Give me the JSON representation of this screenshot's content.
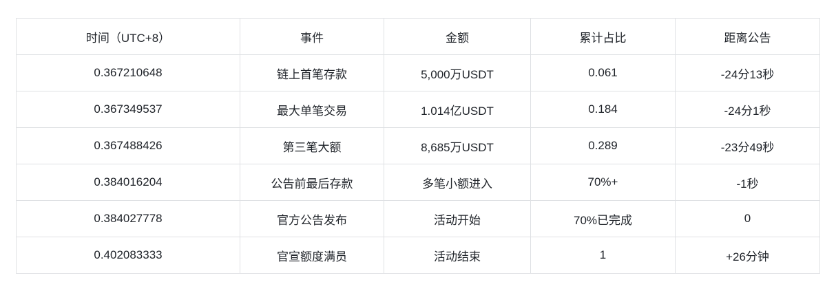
{
  "table": {
    "columns": [
      "时间（UTC+8）",
      "事件",
      "金额",
      "累计占比",
      "距离公告"
    ],
    "rows": [
      [
        "0.367210648",
        "链上首笔存款",
        "5,000万USDT",
        "0.061",
        "-24分13秒"
      ],
      [
        "0.367349537",
        "最大单笔交易",
        "1.014亿USDT",
        "0.184",
        "-24分1秒"
      ],
      [
        "0.367488426",
        "第三笔大额",
        "8,685万USDT",
        "0.289",
        "-23分49秒"
      ],
      [
        "0.384016204",
        "公告前最后存款",
        "多笔小额进入",
        "70%+",
        "-1秒"
      ],
      [
        "0.384027778",
        "官方公告发布",
        "活动开始",
        "70%已完成",
        "0"
      ],
      [
        "0.402083333",
        "官宣额度满员",
        "活动结束",
        "1",
        "+26分钟"
      ]
    ],
    "colors": {
      "text": "#1f2329",
      "border": "#dfe1e4",
      "background": "#ffffff"
    }
  }
}
